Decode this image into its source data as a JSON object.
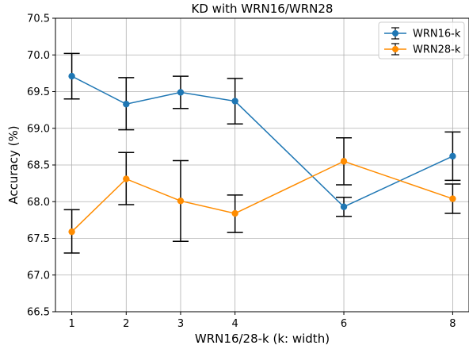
{
  "chart_data": {
    "type": "line",
    "title": "KD with WRN16/WRN28",
    "xlabel": "WRN16/28-k (k: width)",
    "ylabel": "Accuracy (%)",
    "xlim": [
      0.7,
      8.3
    ],
    "ylim": [
      66.5,
      70.5
    ],
    "x_ticks": [
      1,
      2,
      3,
      4,
      6,
      8
    ],
    "y_ticks": [
      66.5,
      67.0,
      67.5,
      68.0,
      68.5,
      69.0,
      69.5,
      70.0,
      70.5
    ],
    "x_tick_labels": [
      "1",
      "2",
      "3",
      "4",
      "6",
      "8"
    ],
    "y_tick_labels": [
      "66.5",
      "67.0",
      "67.5",
      "68.0",
      "68.5",
      "69.0",
      "69.5",
      "70.0",
      "70.5"
    ],
    "grid": true,
    "legend_position": "top-right",
    "x": [
      1,
      2,
      3,
      4,
      6,
      8
    ],
    "series": [
      {
        "name": "WRN16-k",
        "color": "#1f77b4",
        "values": [
          69.71,
          69.33,
          69.49,
          69.37,
          67.93,
          68.62
        ],
        "err_low": [
          69.4,
          68.98,
          69.27,
          69.06,
          67.8,
          68.29
        ],
        "err_high": [
          70.02,
          69.69,
          69.71,
          69.68,
          68.06,
          68.95
        ]
      },
      {
        "name": "WRN28-k",
        "color": "#ff8c00",
        "values": [
          67.59,
          68.31,
          68.01,
          67.84,
          68.55,
          68.04
        ],
        "err_low": [
          67.3,
          67.96,
          67.46,
          67.58,
          68.23,
          67.84
        ],
        "err_high": [
          67.89,
          68.67,
          68.56,
          68.09,
          68.87,
          68.24
        ]
      }
    ]
  }
}
